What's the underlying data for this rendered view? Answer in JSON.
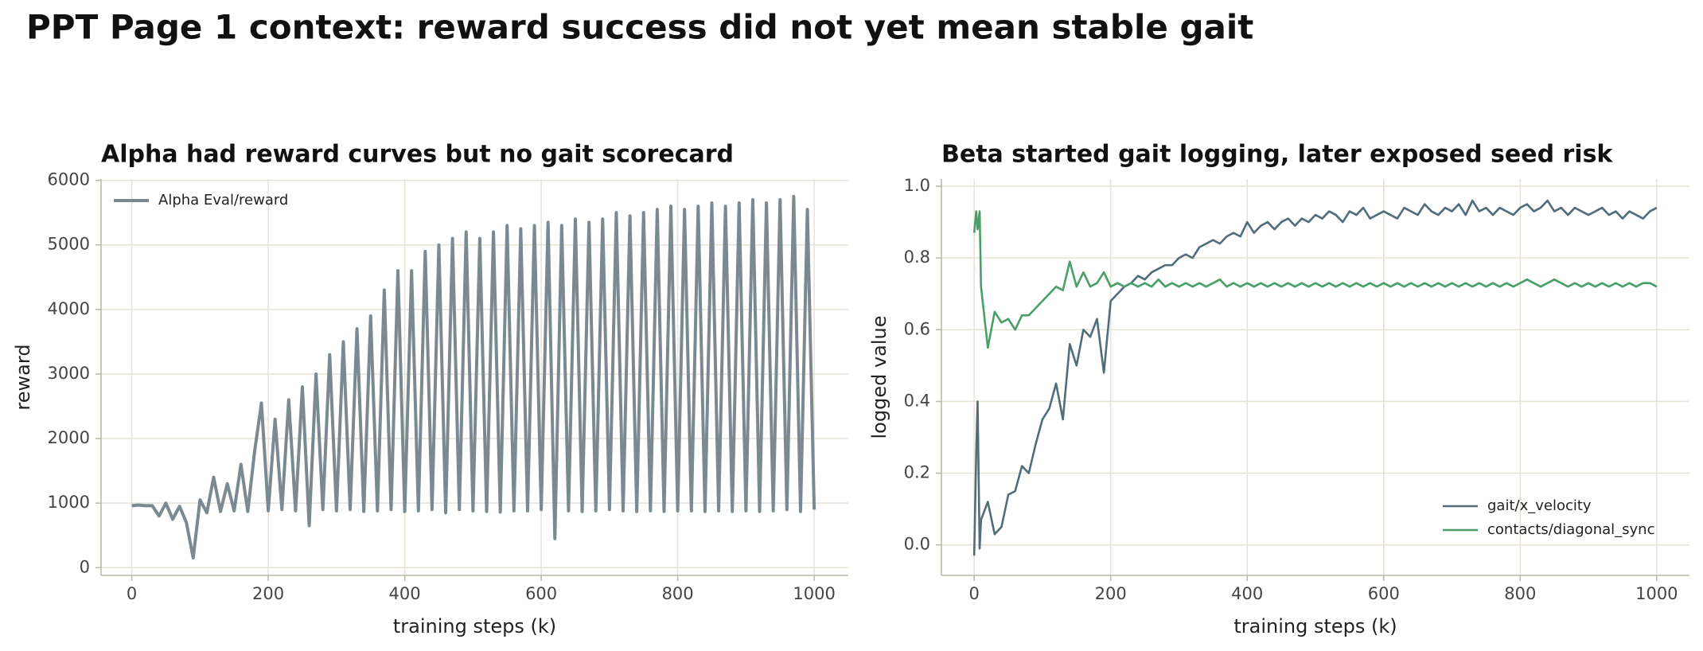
{
  "title": "PPT Page 1 context: reward success did not yet mean stable gait",
  "chart_data": [
    {
      "type": "line",
      "title": "Alpha had reward curves but no gait scorecard",
      "xlabel": "training steps (k)",
      "ylabel": "reward",
      "xlim": [
        -45,
        1050
      ],
      "ylim": [
        -120,
        6020
      ],
      "xticks": [
        0,
        200,
        400,
        600,
        800,
        1000
      ],
      "yticks": [
        0,
        1000,
        2000,
        3000,
        4000,
        5000,
        6000
      ],
      "grid": true,
      "legend": "upper left",
      "x": [
        0,
        10,
        20,
        30,
        40,
        50,
        60,
        70,
        80,
        90,
        100,
        110,
        120,
        130,
        140,
        150,
        160,
        170,
        180,
        190,
        200,
        210,
        220,
        230,
        240,
        250,
        260,
        270,
        280,
        290,
        300,
        310,
        320,
        330,
        340,
        350,
        360,
        370,
        380,
        390,
        400,
        410,
        420,
        430,
        440,
        450,
        460,
        470,
        480,
        490,
        500,
        510,
        520,
        530,
        540,
        550,
        560,
        570,
        580,
        590,
        600,
        610,
        620,
        630,
        640,
        650,
        660,
        670,
        680,
        690,
        700,
        710,
        720,
        730,
        740,
        750,
        760,
        770,
        780,
        790,
        800,
        810,
        820,
        830,
        840,
        850,
        860,
        870,
        880,
        890,
        900,
        910,
        920,
        930,
        940,
        950,
        960,
        970,
        980,
        990,
        1000
      ],
      "series": [
        {
          "name": "Alpha Eval/reward",
          "color": "#7b8990",
          "width": 4,
          "values": [
            960,
            970,
            960,
            960,
            800,
            1000,
            750,
            950,
            700,
            150,
            1050,
            850,
            1400,
            870,
            1300,
            880,
            1600,
            870,
            1800,
            2550,
            880,
            2300,
            900,
            2600,
            880,
            2800,
            650,
            3000,
            900,
            3300,
            880,
            3500,
            900,
            3700,
            870,
            3900,
            880,
            4300,
            900,
            4600,
            870,
            4600,
            880,
            4900,
            900,
            5000,
            850,
            5100,
            900,
            5200,
            880,
            5100,
            870,
            5200,
            860,
            5300,
            880,
            5250,
            880,
            5300,
            900,
            5350,
            450,
            5300,
            880,
            5400,
            870,
            5350,
            880,
            5400,
            900,
            5500,
            880,
            5450,
            870,
            5500,
            880,
            5550,
            870,
            5600,
            880,
            5550,
            880,
            5600,
            870,
            5650,
            880,
            5600,
            870,
            5650,
            880,
            5700,
            870,
            5650,
            880,
            5700,
            900,
            5750,
            870,
            5550,
            900
          ]
        }
      ]
    },
    {
      "type": "line",
      "title": "Beta started gait logging, later exposed seed risk",
      "xlabel": "training steps (k)",
      "ylabel": "logged value",
      "xlim": [
        -48,
        1048
      ],
      "ylim": [
        -0.085,
        1.02
      ],
      "xticks": [
        0,
        200,
        400,
        600,
        800,
        1000
      ],
      "yticks": [
        {
          "value": 0,
          "label": "0.0"
        },
        0.2,
        0.4,
        0.6,
        0.8,
        {
          "value": 1,
          "label": "1.0"
        }
      ],
      "grid": true,
      "legend": "lower right",
      "x": [
        0,
        3,
        5,
        8,
        10,
        20,
        30,
        40,
        50,
        60,
        70,
        80,
        90,
        100,
        110,
        120,
        130,
        140,
        150,
        160,
        170,
        180,
        190,
        200,
        210,
        220,
        230,
        240,
        250,
        260,
        270,
        280,
        290,
        300,
        310,
        320,
        330,
        340,
        350,
        360,
        370,
        380,
        390,
        400,
        410,
        420,
        430,
        440,
        450,
        460,
        470,
        480,
        490,
        500,
        510,
        520,
        530,
        540,
        550,
        560,
        570,
        580,
        590,
        600,
        610,
        620,
        630,
        640,
        650,
        660,
        670,
        680,
        690,
        700,
        710,
        720,
        730,
        740,
        750,
        760,
        770,
        780,
        790,
        800,
        810,
        820,
        830,
        840,
        850,
        860,
        870,
        880,
        890,
        900,
        910,
        920,
        930,
        940,
        950,
        960,
        970,
        980,
        990,
        1000
      ],
      "series": [
        {
          "name": "gait/x_velocity",
          "color": "#4f6d7a",
          "width": 2.6,
          "values": [
            -0.03,
            0.26,
            0.4,
            -0.01,
            0.07,
            0.12,
            0.03,
            0.05,
            0.14,
            0.15,
            0.22,
            0.2,
            0.28,
            0.35,
            0.38,
            0.45,
            0.35,
            0.56,
            0.5,
            0.6,
            0.58,
            0.63,
            0.48,
            0.68,
            0.7,
            0.72,
            0.73,
            0.75,
            0.74,
            0.76,
            0.77,
            0.78,
            0.78,
            0.8,
            0.81,
            0.8,
            0.83,
            0.84,
            0.85,
            0.84,
            0.86,
            0.87,
            0.86,
            0.9,
            0.87,
            0.89,
            0.9,
            0.88,
            0.9,
            0.91,
            0.89,
            0.91,
            0.9,
            0.92,
            0.91,
            0.93,
            0.92,
            0.9,
            0.93,
            0.92,
            0.94,
            0.91,
            0.92,
            0.93,
            0.92,
            0.91,
            0.94,
            0.93,
            0.92,
            0.95,
            0.93,
            0.92,
            0.94,
            0.93,
            0.95,
            0.92,
            0.96,
            0.93,
            0.94,
            0.92,
            0.94,
            0.93,
            0.92,
            0.94,
            0.95,
            0.93,
            0.94,
            0.96,
            0.93,
            0.94,
            0.92,
            0.94,
            0.93,
            0.92,
            0.93,
            0.94,
            0.92,
            0.93,
            0.91,
            0.93,
            0.92,
            0.91,
            0.93,
            0.94
          ]
        },
        {
          "name": "contacts/diagonal_sync",
          "color": "#4a9e67",
          "width": 2.6,
          "values": [
            0.87,
            0.93,
            0.88,
            0.93,
            0.72,
            0.55,
            0.65,
            0.62,
            0.63,
            0.6,
            0.64,
            0.64,
            0.66,
            0.68,
            0.7,
            0.72,
            0.71,
            0.79,
            0.72,
            0.76,
            0.72,
            0.73,
            0.76,
            0.72,
            0.73,
            0.72,
            0.73,
            0.72,
            0.73,
            0.72,
            0.74,
            0.72,
            0.73,
            0.72,
            0.73,
            0.72,
            0.73,
            0.72,
            0.73,
            0.74,
            0.72,
            0.73,
            0.72,
            0.73,
            0.72,
            0.73,
            0.72,
            0.73,
            0.72,
            0.73,
            0.72,
            0.73,
            0.72,
            0.73,
            0.72,
            0.73,
            0.72,
            0.73,
            0.72,
            0.73,
            0.72,
            0.73,
            0.72,
            0.73,
            0.72,
            0.73,
            0.72,
            0.73,
            0.72,
            0.73,
            0.72,
            0.73,
            0.72,
            0.73,
            0.72,
            0.73,
            0.72,
            0.73,
            0.72,
            0.73,
            0.72,
            0.73,
            0.72,
            0.73,
            0.74,
            0.73,
            0.72,
            0.73,
            0.74,
            0.73,
            0.72,
            0.73,
            0.72,
            0.73,
            0.72,
            0.73,
            0.72,
            0.73,
            0.72,
            0.73,
            0.72,
            0.73,
            0.73,
            0.72
          ]
        }
      ]
    }
  ]
}
